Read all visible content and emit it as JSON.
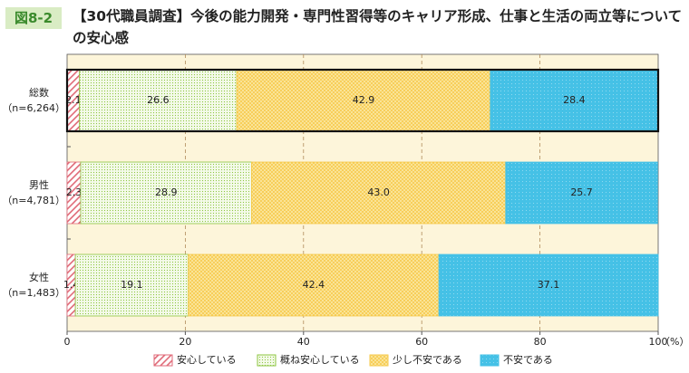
{
  "chart_data": {
    "type": "stacked-barh",
    "figure_label": "図8-2",
    "title": "【30代職員調査】今後の能力開発・専門性習得等のキャリア形成、仕事と生活の両立等についての安心感",
    "categories": [
      "総数",
      "男性",
      "女性"
    ],
    "category_notes": [
      "（n=6,264）",
      "（n=4,781）",
      "（n=1,483）"
    ],
    "series": [
      {
        "name": "安心している",
        "color": "#e06a78",
        "values": [
          2.1,
          2.3,
          1.4
        ]
      },
      {
        "name": "概ね安心している",
        "color": "#8cc63f",
        "values": [
          26.6,
          28.9,
          19.1
        ]
      },
      {
        "name": "少し不安である",
        "color": "#f6c94a",
        "values": [
          42.9,
          43.0,
          42.4
        ],
        "value_labels": [
          "42.9",
          "43.0",
          "42.4"
        ]
      },
      {
        "name": "不安である",
        "color": "#45c1e6",
        "values": [
          28.4,
          25.7,
          37.1
        ]
      }
    ],
    "xlim": [
      0,
      100
    ],
    "xticks": [
      0,
      20,
      40,
      60,
      80,
      100
    ],
    "x_unit": "（%）",
    "grid": true
  }
}
